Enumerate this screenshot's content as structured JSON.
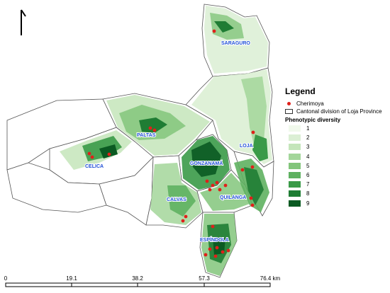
{
  "legend": {
    "title": "Legend",
    "cherimoya_label": "Cherimoya",
    "cantonal_label": "Cantonal division of Loja Province",
    "diversity_title": "Phenotypic diversity",
    "classes": [
      "1",
      "2",
      "3",
      "4",
      "5",
      "6",
      "7",
      "8",
      "9"
    ],
    "class_colors": [
      "#f1f9ec",
      "#dbefd4",
      "#c4e5ba",
      "#a3d69a",
      "#82c57b",
      "#5fb161",
      "#3a9a48",
      "#1f7d34",
      "#0b5a22"
    ],
    "point_color": "#e0201a"
  },
  "cantons": [
    "SARAGURO",
    "LOJA",
    "PALTAS",
    "CELICA",
    "GONZANAMÁ",
    "CALVAS",
    "QUILANGA",
    "ESPÍNDOLA"
  ],
  "north_arrow": "north-arrow",
  "scale_bar": {
    "ticks": [
      "0",
      "19.1",
      "38.2",
      "57.3",
      "76.4 km"
    ]
  }
}
